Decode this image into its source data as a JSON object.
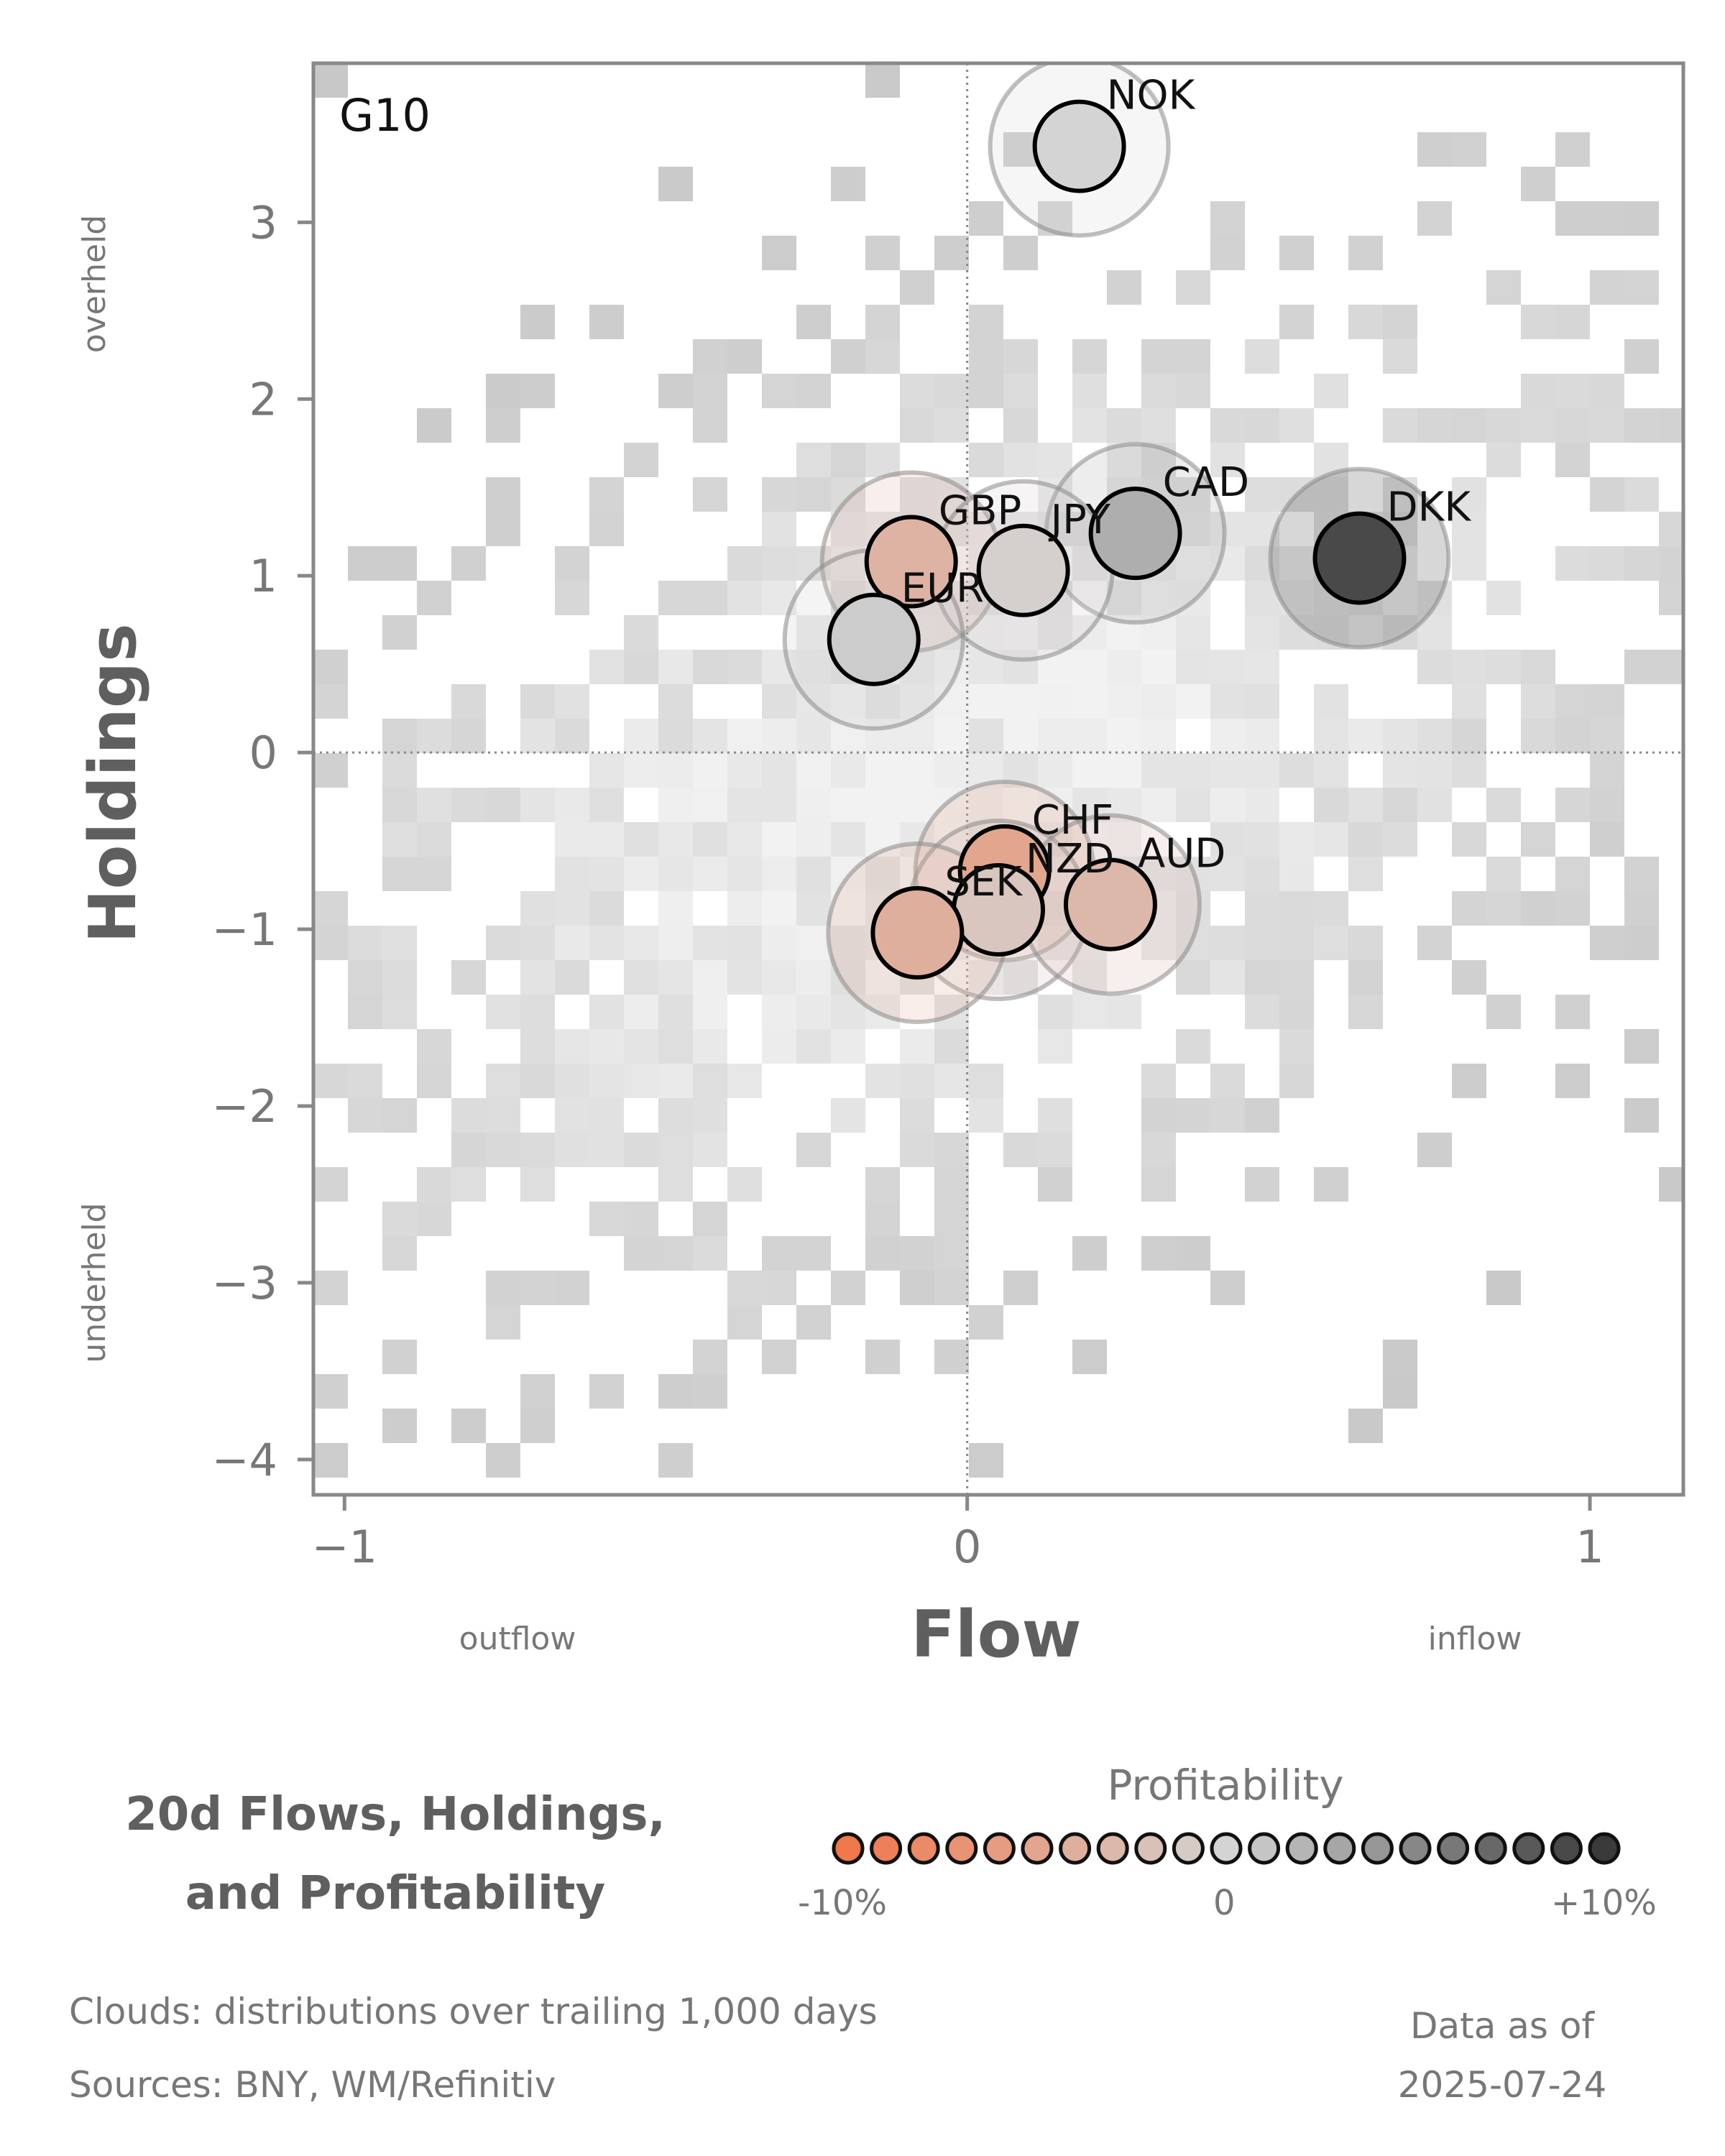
{
  "chart_data": {
    "type": "scatter",
    "panel_label": "G10",
    "xlabel": "Flow",
    "ylabel": "Holdings",
    "xlim": [
      -1.05,
      1.15
    ],
    "ylim": [
      -4.2,
      3.9
    ],
    "xticks": [
      -1,
      0,
      1
    ],
    "xtick_labels": [
      "−1",
      "0",
      "1"
    ],
    "yticks": [
      -4,
      -3,
      -2,
      -1,
      0,
      1,
      2,
      3
    ],
    "ytick_labels": [
      "−4",
      "−3",
      "−2",
      "−1",
      "0",
      "1",
      "2",
      "3"
    ],
    "x_side_labels": {
      "left": "outflow",
      "right": "inflow"
    },
    "y_side_labels": {
      "top": "overheld",
      "bottom": "underheld"
    },
    "reference_lines": {
      "x": 0,
      "y": 0
    },
    "points": [
      {
        "label": "NOK",
        "flow": 0.18,
        "holdings": 3.43,
        "profitability": 0.0
      },
      {
        "label": "CAD",
        "flow": 0.27,
        "holdings": 1.24,
        "profitability": 2.5
      },
      {
        "label": "DKK",
        "flow": 0.63,
        "holdings": 1.1,
        "profitability": 9.0
      },
      {
        "label": "GBP",
        "flow": -0.09,
        "holdings": 1.08,
        "profitability": -3.5
      },
      {
        "label": "JPY",
        "flow": 0.09,
        "holdings": 1.03,
        "profitability": -0.5
      },
      {
        "label": "EUR",
        "flow": -0.15,
        "holdings": 0.64,
        "profitability": 0.5
      },
      {
        "label": "CHF",
        "flow": 0.06,
        "holdings": -0.67,
        "profitability": -5.0
      },
      {
        "label": "NZD",
        "flow": 0.05,
        "holdings": -0.89,
        "profitability": -1.5
      },
      {
        "label": "AUD",
        "flow": 0.23,
        "holdings": -0.86,
        "profitability": -3.0
      },
      {
        "label": "SEK",
        "flow": -0.08,
        "holdings": -1.02,
        "profitability": -4.0
      }
    ],
    "legend": {
      "title": "Profitability",
      "min_label": "-10%",
      "mid_label": "0",
      "max_label": "+10%",
      "range": [
        -10,
        10
      ],
      "steps": 21
    },
    "colors": {
      "negative": "#f0774a",
      "neutral": "#d4d4d4",
      "positive": "#3a3a3a",
      "cloud": "#c6c6c6"
    }
  },
  "title": "20d Flows, Holdings, and Profitability",
  "title_lines": [
    "20d Flows, Holdings,",
    "and Profitability"
  ],
  "footer": {
    "clouds_note": "Clouds:  distributions over trailing 1,000 days",
    "sources_note": "Sources:  BNY, WM/Refinitiv",
    "data_as_of_label": "Data as of",
    "data_as_of_date": "2025-07-24"
  }
}
